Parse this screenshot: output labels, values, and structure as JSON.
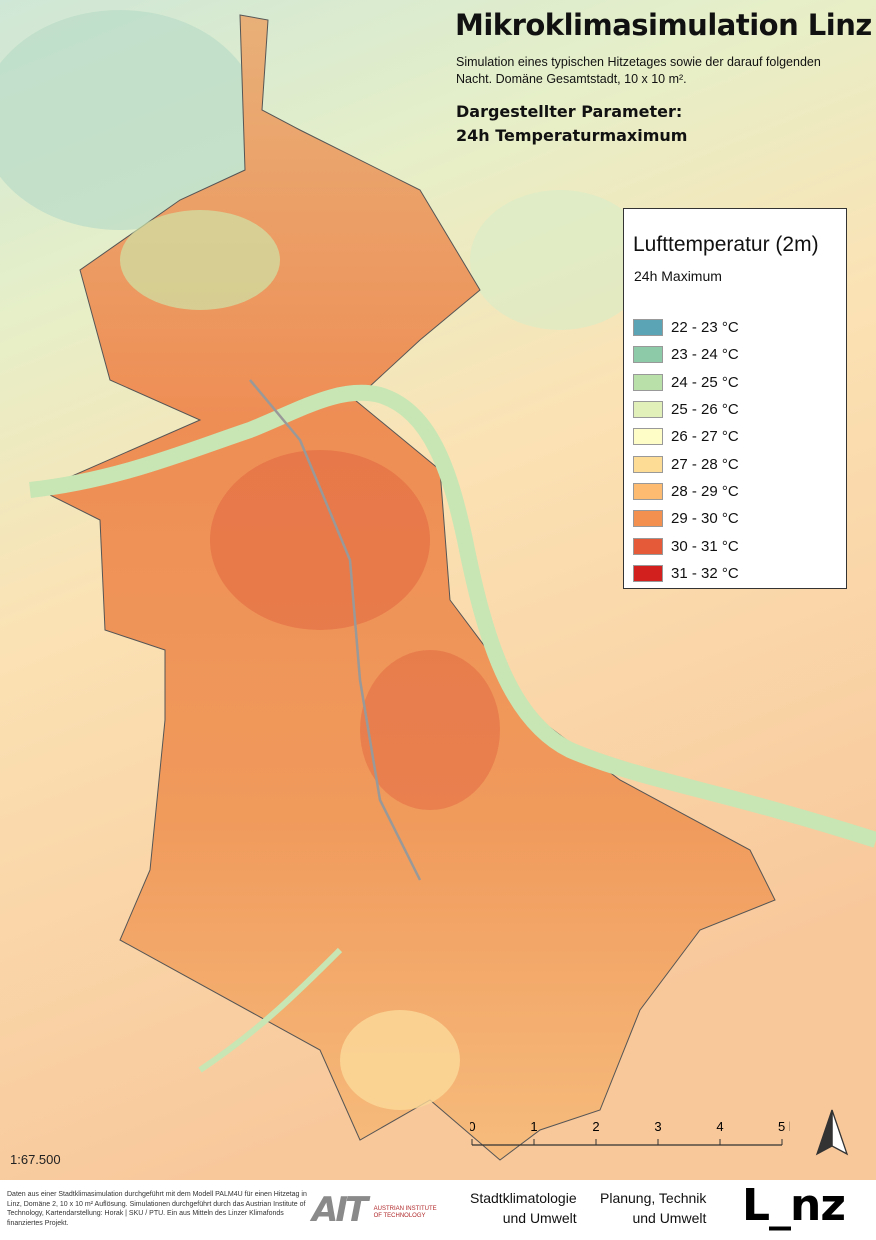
{
  "header": {
    "title": "Mikroklimasimulation Linz",
    "subtitle": "Simulation eines typischen Hitzetages sowie der darauf folgenden Nacht. Domäne Gesamtstadt, 10 x 10 m².",
    "parameter_label": "Dargestellter Parameter:",
    "parameter_value": "24h Temperaturmaximum"
  },
  "legend": {
    "title": "Lufttemperatur (2m)",
    "subtitle": "24h Maximum",
    "items": [
      {
        "label": "22 - 23 °C",
        "color": "#5aa4b5"
      },
      {
        "label": "23 - 24 °C",
        "color": "#8ccaa8"
      },
      {
        "label": "24 - 25 °C",
        "color": "#b8e0a8"
      },
      {
        "label": "25 - 26 °C",
        "color": "#e0f0b8"
      },
      {
        "label": "26 - 27 °C",
        "color": "#fefdc8"
      },
      {
        "label": "27 - 28 °C",
        "color": "#fddc96"
      },
      {
        "label": "28 - 29 °C",
        "color": "#fdbb72"
      },
      {
        "label": "29 - 30 °C",
        "color": "#f3904f"
      },
      {
        "label": "30 - 31 °C",
        "color": "#e55b3a"
      },
      {
        "label": "31 - 32 °C",
        "color": "#d2201f"
      }
    ]
  },
  "scalebar": {
    "ticks": [
      "0",
      "1",
      "2",
      "3",
      "4",
      "5 km"
    ],
    "ratio": "1:67.500"
  },
  "north_arrow": "north-arrow-icon",
  "footer": {
    "credits": "Daten aus einer Stadtklimasimulation durchgeführt mit dem Modell PALM4U für einen Hitzetag in Linz, Domäne 2, 10 x 10 m² Auflösung. Simulationen durchgeführt durch das Austrian Institute of Technology, Kartendarstellung: Horak | SKU / PTU. Ein aus Mitteln des Linzer Klimafonds finanziertes Projekt.",
    "ait_logo": "AIT",
    "ait_name_1": "AUSTRIAN INSTITUTE",
    "ait_name_2": "OF TECHNOLOGY",
    "dept1_line1": "Stadtklimatologie",
    "dept1_line2": "und Umwelt",
    "dept2_line1": "Planung, Technik",
    "dept2_line2": "und Umwelt",
    "linz_logo": "L_nz"
  }
}
